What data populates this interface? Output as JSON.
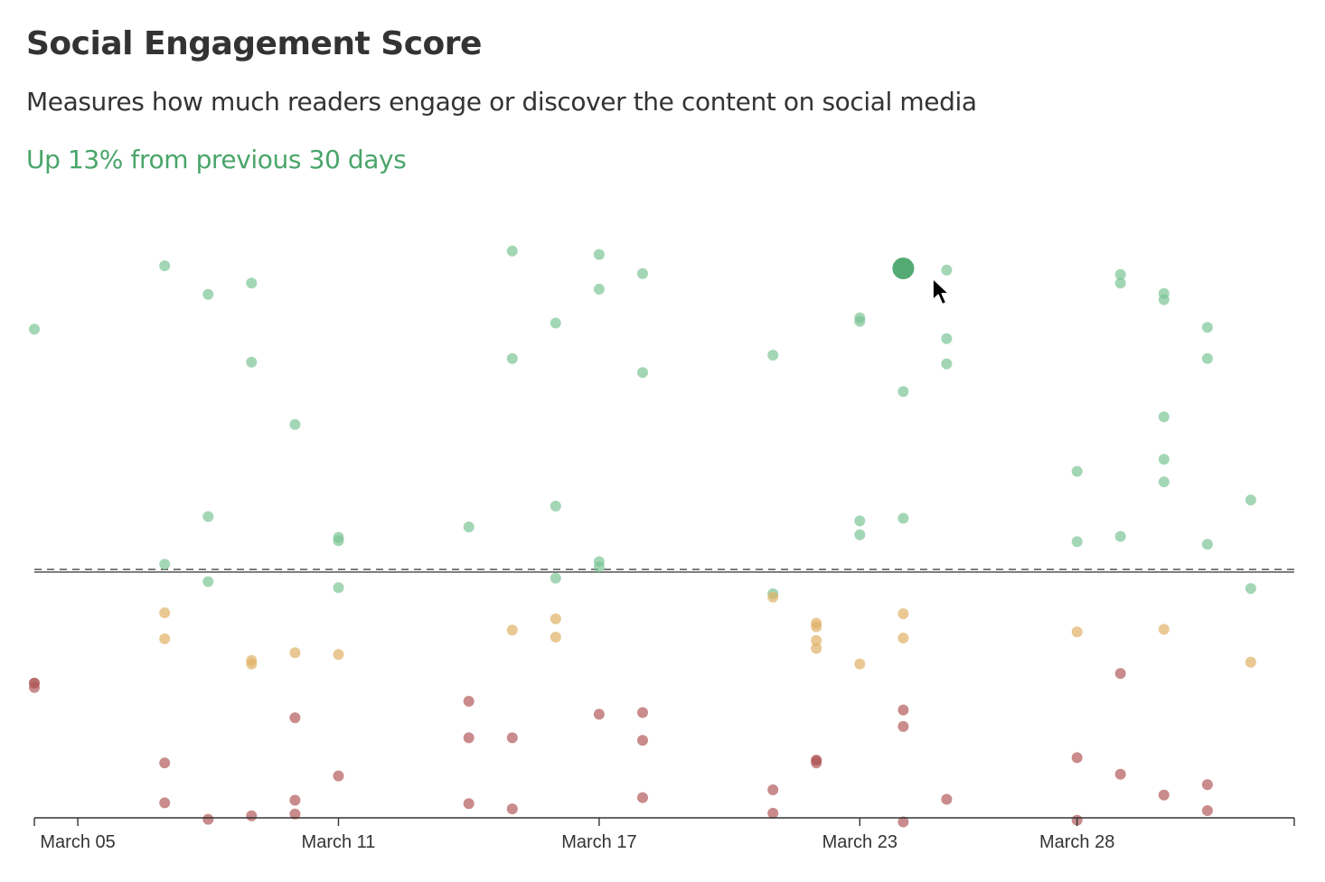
{
  "header": {
    "title": "Social Engagement Score",
    "subtitle": "Measures how much readers engage or discover the content on social media",
    "trend": "Up 13% from previous 30 days"
  },
  "colors": {
    "positive": "#7cc495",
    "neutral": "#dfb067",
    "negative": "#b25a5a",
    "negative_dark": "#9b2f2f",
    "highlight": "#4aa56a",
    "trend_text": "#4aa56a"
  },
  "cursor": {
    "icon": "mouse-pointer-icon"
  },
  "chart_data": {
    "type": "scatter",
    "title": "Social Engagement Score",
    "xlabel": "",
    "ylabel": "",
    "x_ticks": [
      "March 05",
      "March 11",
      "March 17",
      "March 23",
      "March 28"
    ],
    "x_tick_dates": [
      "2024-03-05",
      "2024-03-11",
      "2024-03-17",
      "2024-03-23",
      "2024-03-28"
    ],
    "xlim": [
      "2024-03-04",
      "2024-04-02"
    ],
    "grid": false,
    "legend": false,
    "baseline": {
      "style": "solid",
      "value": 0
    },
    "reference_line": {
      "style": "dashed",
      "value": 0.3
    },
    "points": [
      [
        "2024-03-04",
        28.0,
        "positive"
      ],
      [
        "2024-03-04",
        -12.8,
        "negative_dark"
      ],
      [
        "2024-03-04",
        -13.3,
        "negative"
      ],
      [
        "2024-03-07",
        35.3,
        "positive"
      ],
      [
        "2024-03-07",
        0.9,
        "positive"
      ],
      [
        "2024-03-07",
        -4.7,
        "neutral"
      ],
      [
        "2024-03-07",
        -7.7,
        "neutral"
      ],
      [
        "2024-03-07",
        -22.0,
        "negative"
      ],
      [
        "2024-03-07",
        -26.6,
        "negative"
      ],
      [
        "2024-03-08",
        32.0,
        "positive"
      ],
      [
        "2024-03-08",
        6.4,
        "positive"
      ],
      [
        "2024-03-08",
        -1.1,
        "positive"
      ],
      [
        "2024-03-08",
        -28.5,
        "negative"
      ],
      [
        "2024-03-09",
        33.3,
        "positive"
      ],
      [
        "2024-03-09",
        24.2,
        "positive"
      ],
      [
        "2024-03-09",
        -10.2,
        "neutral"
      ],
      [
        "2024-03-09",
        -10.6,
        "neutral"
      ],
      [
        "2024-03-09",
        -28.1,
        "negative"
      ],
      [
        "2024-03-10",
        17.0,
        "positive"
      ],
      [
        "2024-03-10",
        -9.3,
        "neutral"
      ],
      [
        "2024-03-10",
        -16.8,
        "negative"
      ],
      [
        "2024-03-10",
        -26.3,
        "negative"
      ],
      [
        "2024-03-10",
        -27.9,
        "negative"
      ],
      [
        "2024-03-11",
        4.0,
        "positive"
      ],
      [
        "2024-03-11",
        3.6,
        "positive"
      ],
      [
        "2024-03-11",
        -1.8,
        "positive"
      ],
      [
        "2024-03-11",
        -9.5,
        "neutral"
      ],
      [
        "2024-03-11",
        -23.5,
        "negative"
      ],
      [
        "2024-03-14",
        5.2,
        "positive"
      ],
      [
        "2024-03-14",
        -14.9,
        "negative"
      ],
      [
        "2024-03-14",
        -19.1,
        "negative"
      ],
      [
        "2024-03-14",
        -26.7,
        "negative"
      ],
      [
        "2024-03-15",
        37.0,
        "positive"
      ],
      [
        "2024-03-15",
        24.6,
        "positive"
      ],
      [
        "2024-03-15",
        -6.7,
        "neutral"
      ],
      [
        "2024-03-15",
        -19.1,
        "negative"
      ],
      [
        "2024-03-15",
        -27.3,
        "negative"
      ],
      [
        "2024-03-16",
        28.7,
        "positive"
      ],
      [
        "2024-03-16",
        7.6,
        "positive"
      ],
      [
        "2024-03-16",
        -0.7,
        "positive"
      ],
      [
        "2024-03-16",
        -5.4,
        "neutral"
      ],
      [
        "2024-03-16",
        -7.5,
        "neutral"
      ],
      [
        "2024-03-17",
        36.6,
        "positive"
      ],
      [
        "2024-03-17",
        32.6,
        "positive"
      ],
      [
        "2024-03-17",
        1.2,
        "positive"
      ],
      [
        "2024-03-17",
        0.6,
        "positive"
      ],
      [
        "2024-03-17",
        -16.4,
        "negative"
      ],
      [
        "2024-03-18",
        34.4,
        "positive"
      ],
      [
        "2024-03-18",
        23.0,
        "positive"
      ],
      [
        "2024-03-18",
        -16.2,
        "negative"
      ],
      [
        "2024-03-18",
        -19.4,
        "negative"
      ],
      [
        "2024-03-18",
        -26.0,
        "negative"
      ],
      [
        "2024-03-21",
        25.0,
        "positive"
      ],
      [
        "2024-03-21",
        -2.5,
        "positive"
      ],
      [
        "2024-03-21",
        -2.9,
        "neutral"
      ],
      [
        "2024-03-21",
        -25.1,
        "negative"
      ],
      [
        "2024-03-21",
        -27.8,
        "negative"
      ],
      [
        "2024-03-22",
        -5.9,
        "neutral"
      ],
      [
        "2024-03-22",
        -6.3,
        "neutral"
      ],
      [
        "2024-03-22",
        -7.9,
        "neutral"
      ],
      [
        "2024-03-22",
        -8.8,
        "neutral"
      ],
      [
        "2024-03-22",
        -21.7,
        "negative_dark"
      ],
      [
        "2024-03-22",
        -22.0,
        "negative"
      ],
      [
        "2024-03-23",
        29.3,
        "positive"
      ],
      [
        "2024-03-23",
        28.9,
        "positive"
      ],
      [
        "2024-03-23",
        5.9,
        "positive"
      ],
      [
        "2024-03-23",
        4.3,
        "positive"
      ],
      [
        "2024-03-23",
        -10.6,
        "neutral"
      ],
      [
        "2024-03-24",
        35.0,
        "highlight"
      ],
      [
        "2024-03-24",
        20.8,
        "positive"
      ],
      [
        "2024-03-24",
        6.2,
        "positive"
      ],
      [
        "2024-03-24",
        -4.8,
        "neutral"
      ],
      [
        "2024-03-24",
        -7.6,
        "neutral"
      ],
      [
        "2024-03-24",
        -15.9,
        "negative"
      ],
      [
        "2024-03-24",
        -17.8,
        "negative"
      ],
      [
        "2024-03-24",
        -28.8,
        "negative"
      ],
      [
        "2024-03-25",
        34.8,
        "positive"
      ],
      [
        "2024-03-25",
        26.9,
        "positive"
      ],
      [
        "2024-03-25",
        24.0,
        "positive"
      ],
      [
        "2024-03-25",
        -26.2,
        "negative"
      ],
      [
        "2024-03-28",
        11.6,
        "positive"
      ],
      [
        "2024-03-28",
        3.5,
        "positive"
      ],
      [
        "2024-03-28",
        -6.9,
        "neutral"
      ],
      [
        "2024-03-28",
        -21.4,
        "negative"
      ],
      [
        "2024-03-28",
        -28.6,
        "negative"
      ],
      [
        "2024-03-29",
        34.3,
        "positive"
      ],
      [
        "2024-03-29",
        33.3,
        "positive"
      ],
      [
        "2024-03-29",
        4.1,
        "positive"
      ],
      [
        "2024-03-29",
        -11.7,
        "negative"
      ],
      [
        "2024-03-29",
        -23.3,
        "negative"
      ],
      [
        "2024-03-30",
        32.1,
        "positive"
      ],
      [
        "2024-03-30",
        31.4,
        "positive"
      ],
      [
        "2024-03-30",
        17.9,
        "positive"
      ],
      [
        "2024-03-30",
        13.0,
        "positive"
      ],
      [
        "2024-03-30",
        10.4,
        "positive"
      ],
      [
        "2024-03-30",
        -6.6,
        "neutral"
      ],
      [
        "2024-03-30",
        -25.7,
        "negative"
      ],
      [
        "2024-03-31",
        28.2,
        "positive"
      ],
      [
        "2024-03-31",
        24.6,
        "positive"
      ],
      [
        "2024-03-31",
        3.2,
        "positive"
      ],
      [
        "2024-03-31",
        -24.5,
        "negative"
      ],
      [
        "2024-03-31",
        -27.5,
        "negative"
      ],
      [
        "2024-04-01",
        8.3,
        "positive"
      ],
      [
        "2024-04-01",
        -1.9,
        "positive"
      ],
      [
        "2024-04-01",
        -10.4,
        "neutral"
      ]
    ]
  }
}
